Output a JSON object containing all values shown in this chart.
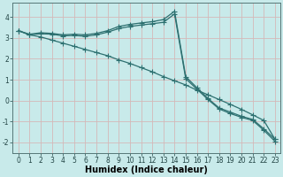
{
  "title": "",
  "xlabel": "Humidex (Indice chaleur)",
  "ylabel": "",
  "background_color": "#c8eaea",
  "grid_color": "#d4b8b8",
  "line_color": "#2d7070",
  "x": [
    0,
    1,
    2,
    3,
    4,
    5,
    6,
    7,
    8,
    9,
    10,
    11,
    12,
    13,
    14,
    15,
    16,
    17,
    18,
    19,
    20,
    21,
    22,
    23
  ],
  "line1": [
    3.35,
    3.18,
    3.25,
    3.22,
    3.15,
    3.18,
    3.15,
    3.22,
    3.35,
    3.55,
    3.65,
    3.72,
    3.78,
    3.88,
    4.28,
    1.15,
    0.62,
    0.1,
    -0.35,
    -0.55,
    -0.75,
    -0.9,
    -1.35,
    -1.85
  ],
  "line2": [
    3.35,
    3.15,
    3.2,
    3.18,
    3.1,
    3.12,
    3.08,
    3.15,
    3.28,
    3.45,
    3.55,
    3.62,
    3.68,
    3.75,
    4.15,
    1.05,
    0.55,
    0.05,
    -0.4,
    -0.62,
    -0.8,
    -0.95,
    -1.42,
    -1.95
  ],
  "line3": [
    3.35,
    3.15,
    3.05,
    2.9,
    2.75,
    2.6,
    2.45,
    2.3,
    2.15,
    1.95,
    1.78,
    1.58,
    1.38,
    1.15,
    0.95,
    0.75,
    0.5,
    0.28,
    0.05,
    -0.18,
    -0.42,
    -0.68,
    -0.95,
    -1.85
  ],
  "ylim": [
    -2.5,
    4.7
  ],
  "xlim": [
    -0.5,
    23.5
  ],
  "yticks": [
    -2,
    -1,
    0,
    1,
    2,
    3,
    4
  ],
  "xticks": [
    0,
    1,
    2,
    3,
    4,
    5,
    6,
    7,
    8,
    9,
    10,
    11,
    12,
    13,
    14,
    15,
    16,
    17,
    18,
    19,
    20,
    21,
    22,
    23
  ],
  "marker": "+",
  "markersize": 4.0,
  "linewidth": 0.9,
  "tick_fontsize": 5.5,
  "xlabel_fontsize": 7.0
}
